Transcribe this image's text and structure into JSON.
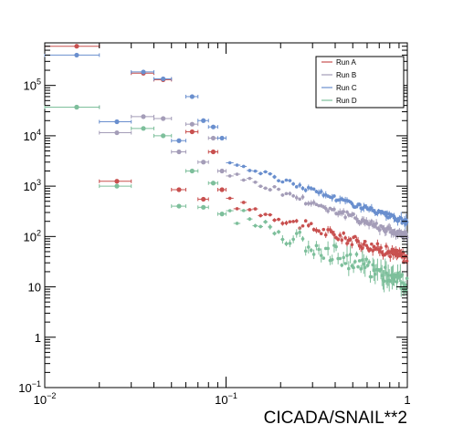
{
  "chart_data": {
    "type": "scatter",
    "title": "",
    "xlabel": "CICADA/SNAIL**2",
    "ylabel": "",
    "xscale": "log",
    "yscale": "log",
    "xlim": [
      0.01,
      1
    ],
    "ylim": [
      0.1,
      700000
    ],
    "grid": false,
    "legend_position": "top-right",
    "x_tick_labels": [
      {
        "value": 0.01,
        "label": "10",
        "sup": "−2"
      },
      {
        "value": 0.1,
        "label": "10",
        "sup": "−1"
      },
      {
        "value": 1,
        "label": "1",
        "sup": ""
      }
    ],
    "y_tick_labels": [
      {
        "value": 0.1,
        "label": "10",
        "sup": "−1"
      },
      {
        "value": 1,
        "label": "1",
        "sup": ""
      },
      {
        "value": 10,
        "label": "10",
        "sup": ""
      },
      {
        "value": 100,
        "label": "10",
        "sup": "2"
      },
      {
        "value": 1000,
        "label": "10",
        "sup": "3"
      },
      {
        "value": 10000,
        "label": "10",
        "sup": "4"
      },
      {
        "value": 100000,
        "label": "10",
        "sup": "5"
      }
    ],
    "series": [
      {
        "name": "Run A",
        "color": "#c8504f",
        "low_points": [
          {
            "x": 0.015,
            "xerr": [
              0.01,
              0.02
            ],
            "y": 600000
          },
          {
            "x": 0.025,
            "xerr": [
              0.02,
              0.03
            ],
            "y": 1250
          },
          {
            "x": 0.035,
            "xerr": [
              0.03,
              0.04
            ],
            "y": 175000
          },
          {
            "x": 0.045,
            "xerr": [
              0.04,
              0.05
            ],
            "y": 130000
          },
          {
            "x": 0.055,
            "xerr": [
              0.05,
              0.06
            ],
            "y": 850
          },
          {
            "x": 0.065,
            "xerr": [
              0.06,
              0.07
            ],
            "y": 12000
          },
          {
            "x": 0.075,
            "xerr": [
              0.07,
              0.08
            ],
            "y": 550
          },
          {
            "x": 0.085,
            "xerr": [
              0.08,
              0.09
            ],
            "y": 4800
          },
          {
            "x": 0.095,
            "xerr": [
              0.09,
              0.1
            ],
            "y": 850
          }
        ],
        "tail": {
          "x_start": 0.105,
          "y_start": 480,
          "x_end": 1.0,
          "y_end": 38,
          "scatter": 0.1
        }
      },
      {
        "name": "Run B",
        "color": "#a49db8",
        "low_points": [
          {
            "x": 0.015,
            "xerr": [
              0.01,
              0.02
            ],
            "y": 37000
          },
          {
            "x": 0.025,
            "xerr": [
              0.02,
              0.03
            ],
            "y": 11500
          },
          {
            "x": 0.035,
            "xerr": [
              0.03,
              0.04
            ],
            "y": 24000
          },
          {
            "x": 0.045,
            "xerr": [
              0.04,
              0.05
            ],
            "y": 22000
          },
          {
            "x": 0.055,
            "xerr": [
              0.05,
              0.06
            ],
            "y": 4800
          },
          {
            "x": 0.065,
            "xerr": [
              0.06,
              0.07
            ],
            "y": 17000
          },
          {
            "x": 0.075,
            "xerr": [
              0.07,
              0.08
            ],
            "y": 3000
          },
          {
            "x": 0.085,
            "xerr": [
              0.08,
              0.09
            ],
            "y": 9000
          },
          {
            "x": 0.095,
            "xerr": [
              0.09,
              0.1
            ],
            "y": 2000
          }
        ],
        "tail": {
          "x_start": 0.105,
          "y_start": 1800,
          "x_end": 1.0,
          "y_end": 100,
          "scatter": 0.07
        }
      },
      {
        "name": "Run C",
        "color": "#6a8fce",
        "low_points": [
          {
            "x": 0.015,
            "xerr": [
              0.01,
              0.02
            ],
            "y": 400000
          },
          {
            "x": 0.025,
            "xerr": [
              0.02,
              0.03
            ],
            "y": 19000
          },
          {
            "x": 0.035,
            "xerr": [
              0.03,
              0.04
            ],
            "y": 185000
          },
          {
            "x": 0.045,
            "xerr": [
              0.04,
              0.05
            ],
            "y": 135000
          },
          {
            "x": 0.055,
            "xerr": [
              0.05,
              0.06
            ],
            "y": 8000
          },
          {
            "x": 0.065,
            "xerr": [
              0.06,
              0.07
            ],
            "y": 60000
          },
          {
            "x": 0.075,
            "xerr": [
              0.07,
              0.08
            ],
            "y": 20000
          },
          {
            "x": 0.085,
            "xerr": [
              0.08,
              0.09
            ],
            "y": 15000
          },
          {
            "x": 0.095,
            "xerr": [
              0.09,
              0.1
            ],
            "y": 9000
          }
        ],
        "tail": {
          "x_start": 0.105,
          "y_start": 3000,
          "x_end": 1.0,
          "y_end": 190,
          "scatter": 0.05
        }
      },
      {
        "name": "Run D",
        "color": "#7dbf9b",
        "low_points": [
          {
            "x": 0.015,
            "xerr": [
              0.01,
              0.02
            ],
            "y": 37000
          },
          {
            "x": 0.025,
            "xerr": [
              0.02,
              0.03
            ],
            "y": 1000
          },
          {
            "x": 0.035,
            "xerr": [
              0.03,
              0.04
            ],
            "y": 14000
          },
          {
            "x": 0.045,
            "xerr": [
              0.04,
              0.05
            ],
            "y": 10000
          },
          {
            "x": 0.055,
            "xerr": [
              0.05,
              0.06
            ],
            "y": 400
          },
          {
            "x": 0.065,
            "xerr": [
              0.06,
              0.07
            ],
            "y": 2000
          },
          {
            "x": 0.075,
            "xerr": [
              0.07,
              0.08
            ],
            "y": 380
          },
          {
            "x": 0.085,
            "xerr": [
              0.08,
              0.09
            ],
            "y": 1150
          },
          {
            "x": 0.095,
            "xerr": [
              0.09,
              0.1
            ],
            "y": 280
          }
        ],
        "tail": {
          "x_start": 0.105,
          "y_start": 300,
          "x_end": 1.0,
          "y_end": 12,
          "scatter": 0.18
        }
      }
    ]
  }
}
